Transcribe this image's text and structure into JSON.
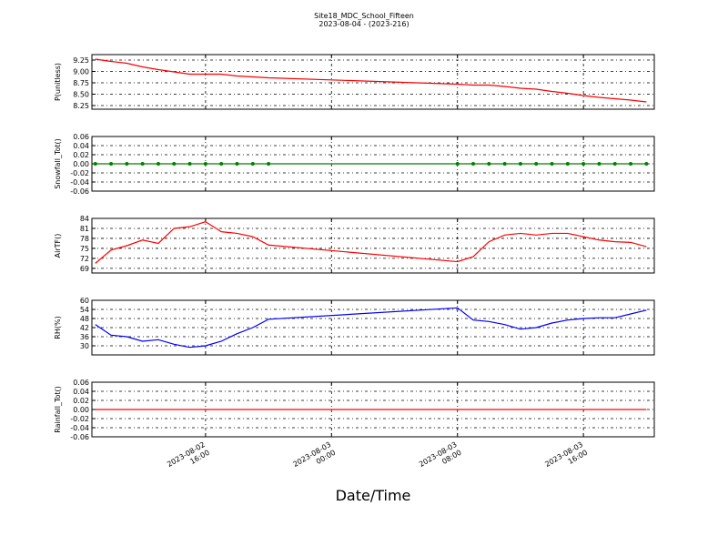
{
  "figure": {
    "title": "Site18_MDC_School_Fifteen",
    "subtitle": "2023-08-04 - (2023-216)",
    "xlabel": "Date/Time"
  },
  "chart_data": [
    {
      "type": "line",
      "ylabel": "P(unitless)",
      "color": "#ff0000",
      "markers": false,
      "xlim": [
        "2023-08-02 08:47",
        "2023-08-03 20:30"
      ],
      "xticks": [
        "2023-08-02 16:00",
        "2023-08-03 00:00",
        "2023-08-03 08:00",
        "2023-08-03 16:00"
      ],
      "ylim": [
        8.17,
        9.37
      ],
      "yticks": [
        8.25,
        {
          "value": 8.5,
          "label": "8.50"
        },
        8.75,
        {
          "value": 9,
          "label": "9.00"
        },
        9.25
      ],
      "x": [
        "2023-08-02 09:00",
        "2023-08-02 10:00",
        "2023-08-02 11:00",
        "2023-08-02 12:00",
        "2023-08-02 13:00",
        "2023-08-02 14:00",
        "2023-08-02 15:00",
        "2023-08-02 16:00",
        "2023-08-02 17:00",
        "2023-08-02 18:00",
        "2023-08-02 19:00",
        "2023-08-02 20:00",
        "2023-08-03 08:00",
        "2023-08-03 09:00",
        "2023-08-03 10:00",
        "2023-08-03 11:00",
        "2023-08-03 12:00",
        "2023-08-03 13:00",
        "2023-08-03 14:00",
        "2023-08-03 15:00",
        "2023-08-03 16:00",
        "2023-08-03 17:00",
        "2023-08-03 18:00",
        "2023-08-03 19:00",
        "2023-08-03 20:00"
      ],
      "values": [
        9.27,
        9.22,
        9.18,
        9.1,
        9.04,
        8.99,
        8.94,
        8.94,
        8.94,
        8.9,
        8.88,
        8.86,
        8.72,
        8.7,
        8.7,
        8.67,
        8.63,
        8.61,
        8.56,
        8.52,
        8.47,
        8.43,
        8.4,
        8.37,
        8.33
      ]
    },
    {
      "type": "line",
      "ylabel": "Snowfall_Tot()",
      "color": "#008000",
      "markers": true,
      "xlim": [
        "2023-08-02 08:47",
        "2023-08-03 20:30"
      ],
      "xticks": [
        "2023-08-02 16:00",
        "2023-08-03 00:00",
        "2023-08-03 08:00",
        "2023-08-03 16:00"
      ],
      "ylim": [
        -0.06,
        0.06
      ],
      "yticks": [
        -0.06,
        -0.04,
        -0.02,
        {
          "value": 0,
          "label": "0.00"
        },
        0.02,
        0.04,
        0.06
      ],
      "x": [
        "2023-08-02 09:00",
        "2023-08-02 10:00",
        "2023-08-02 11:00",
        "2023-08-02 12:00",
        "2023-08-02 13:00",
        "2023-08-02 14:00",
        "2023-08-02 15:00",
        "2023-08-02 16:00",
        "2023-08-02 17:00",
        "2023-08-02 18:00",
        "2023-08-02 19:00",
        "2023-08-02 20:00",
        "2023-08-03 08:00",
        "2023-08-03 09:00",
        "2023-08-03 10:00",
        "2023-08-03 11:00",
        "2023-08-03 12:00",
        "2023-08-03 13:00",
        "2023-08-03 14:00",
        "2023-08-03 15:00",
        "2023-08-03 16:00",
        "2023-08-03 17:00",
        "2023-08-03 18:00",
        "2023-08-03 19:00",
        "2023-08-03 20:00"
      ],
      "values": [
        0,
        0,
        0,
        0,
        0,
        0,
        0,
        0,
        0,
        0,
        0,
        0,
        0,
        0,
        0,
        0,
        0,
        0,
        0,
        0,
        0,
        0,
        0,
        0,
        0
      ]
    },
    {
      "type": "line",
      "ylabel": "AirTF()",
      "color": "#ff0000",
      "markers": false,
      "xlim": [
        "2023-08-02 08:47",
        "2023-08-03 20:30"
      ],
      "xticks": [
        "2023-08-02 16:00",
        "2023-08-03 00:00",
        "2023-08-03 08:00",
        "2023-08-03 16:00"
      ],
      "ylim": [
        67.6,
        84
      ],
      "yticks": [
        69,
        72,
        75,
        78,
        81,
        84
      ],
      "x": [
        "2023-08-02 09:00",
        "2023-08-02 10:00",
        "2023-08-02 11:00",
        "2023-08-02 12:00",
        "2023-08-02 13:00",
        "2023-08-02 14:00",
        "2023-08-02 15:00",
        "2023-08-02 16:00",
        "2023-08-02 17:00",
        "2023-08-02 18:00",
        "2023-08-02 19:00",
        "2023-08-02 20:00",
        "2023-08-03 08:00",
        "2023-08-03 09:00",
        "2023-08-03 10:00",
        "2023-08-03 11:00",
        "2023-08-03 12:00",
        "2023-08-03 13:00",
        "2023-08-03 14:00",
        "2023-08-03 15:00",
        "2023-08-03 16:00",
        "2023-08-03 17:00",
        "2023-08-03 18:00",
        "2023-08-03 19:00",
        "2023-08-03 20:00"
      ],
      "values": [
        70.5,
        74.5,
        75.8,
        77.5,
        76.5,
        81,
        81.5,
        83,
        80,
        79.5,
        78.5,
        76,
        71,
        72.5,
        77,
        79,
        79.5,
        79,
        79.5,
        79.5,
        78.5,
        77.5,
        77,
        76.8,
        75.5
      ]
    },
    {
      "type": "line",
      "ylabel": "RH(%)",
      "color": "#0000ff",
      "markers": false,
      "xlim": [
        "2023-08-02 08:47",
        "2023-08-03 20:30"
      ],
      "xticks": [
        "2023-08-02 16:00",
        "2023-08-03 00:00",
        "2023-08-03 08:00",
        "2023-08-03 16:00"
      ],
      "ylim": [
        24,
        60
      ],
      "yticks": [
        30,
        36,
        42,
        48,
        54,
        60
      ],
      "x": [
        "2023-08-02 09:00",
        "2023-08-02 10:00",
        "2023-08-02 11:00",
        "2023-08-02 12:00",
        "2023-08-02 13:00",
        "2023-08-02 14:00",
        "2023-08-02 15:00",
        "2023-08-02 16:00",
        "2023-08-02 17:00",
        "2023-08-02 18:00",
        "2023-08-02 19:00",
        "2023-08-02 20:00",
        "2023-08-03 08:00",
        "2023-08-03 09:00",
        "2023-08-03 10:00",
        "2023-08-03 11:00",
        "2023-08-03 12:00",
        "2023-08-03 13:00",
        "2023-08-03 14:00",
        "2023-08-03 15:00",
        "2023-08-03 16:00",
        "2023-08-03 17:00",
        "2023-08-03 18:00",
        "2023-08-03 19:00",
        "2023-08-03 20:00"
      ],
      "values": [
        44,
        37,
        36,
        33,
        34,
        31,
        29,
        30,
        33,
        38,
        42,
        47.5,
        55,
        47,
        46,
        44,
        41,
        42,
        45,
        47,
        48,
        48.5,
        48.5,
        51,
        53.5
      ]
    },
    {
      "type": "line",
      "ylabel": "Rainfall_Tot()",
      "color": "#ff0000",
      "markers": false,
      "xlim": [
        "2023-08-02 08:47",
        "2023-08-03 20:30"
      ],
      "xticks": [
        {
          "value": "2023-08-02 16:00",
          "label": "2023-08-02\n16:00"
        },
        {
          "value": "2023-08-03 00:00",
          "label": "2023-08-03\n00:00"
        },
        {
          "value": "2023-08-03 08:00",
          "label": "2023-08-03\n08:00"
        },
        {
          "value": "2023-08-03 16:00",
          "label": "2023-08-03\n16:00"
        }
      ],
      "ylim": [
        -0.06,
        0.06
      ],
      "yticks": [
        -0.06,
        -0.04,
        -0.02,
        {
          "value": 0,
          "label": "0.00"
        },
        0.02,
        0.04,
        0.06
      ],
      "x": [
        "2023-08-02 09:00",
        "2023-08-02 10:00",
        "2023-08-02 11:00",
        "2023-08-02 12:00",
        "2023-08-02 13:00",
        "2023-08-02 14:00",
        "2023-08-02 15:00",
        "2023-08-02 16:00",
        "2023-08-02 17:00",
        "2023-08-02 18:00",
        "2023-08-02 19:00",
        "2023-08-02 20:00",
        "2023-08-03 08:00",
        "2023-08-03 09:00",
        "2023-08-03 10:00",
        "2023-08-03 11:00",
        "2023-08-03 12:00",
        "2023-08-03 13:00",
        "2023-08-03 14:00",
        "2023-08-03 15:00",
        "2023-08-03 16:00",
        "2023-08-03 17:00",
        "2023-08-03 18:00",
        "2023-08-03 19:00",
        "2023-08-03 20:00"
      ],
      "values": [
        0,
        0,
        0,
        0,
        0,
        0,
        0,
        0,
        0,
        0,
        0,
        0,
        0,
        0,
        0,
        0,
        0,
        0,
        0,
        0,
        0,
        0,
        0,
        0,
        0
      ]
    }
  ]
}
